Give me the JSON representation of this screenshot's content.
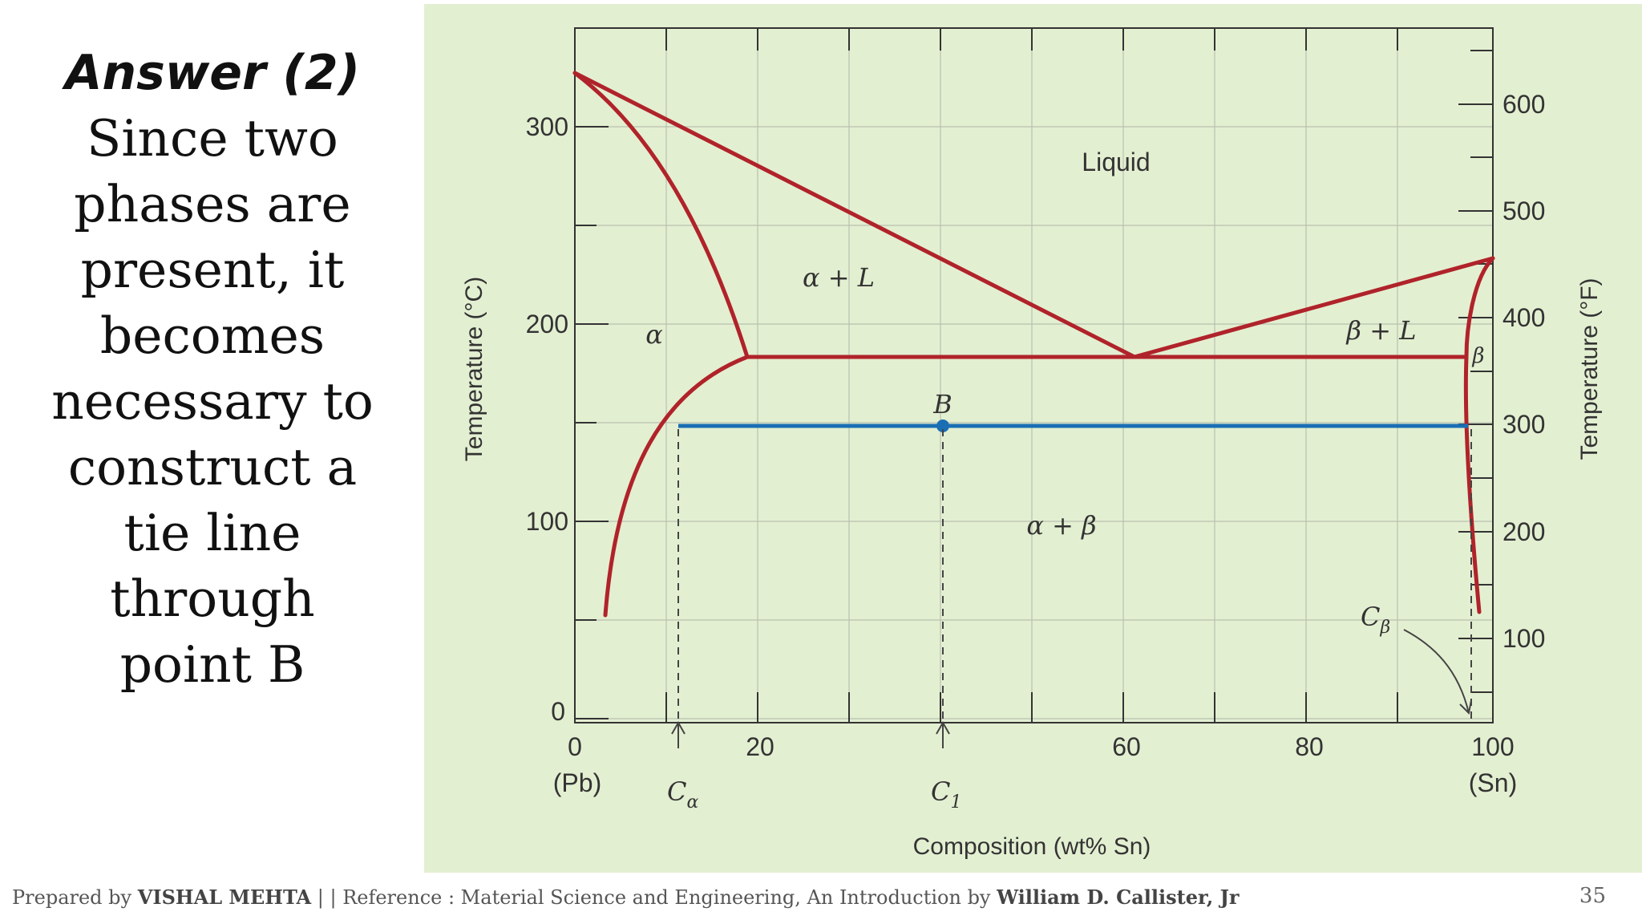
{
  "answer": {
    "title": "Answer (2)",
    "lines": [
      "Since two",
      "phases are",
      "present, it",
      "becomes",
      "necessary to",
      "construct a",
      "tie line",
      "through",
      "point B"
    ]
  },
  "footer": {
    "prefix": "Prepared by ",
    "author": "VISHAL MEHTA",
    "middle": " | | Reference : Material Science and Engineering, An Introduction by ",
    "book_author": "William D. Callister, Jr",
    "page_number": "35"
  },
  "diagram": {
    "x_axis_title": "Composition (wt% Sn)",
    "left_axis_title": "Temperature (°C)",
    "right_axis_title": "Temperature (°F)",
    "x_ticks": [
      "0",
      "20",
      "60",
      "80",
      "100"
    ],
    "x_end_labels": [
      "(Pb)",
      "(Sn)"
    ],
    "left_ticks": [
      "0",
      "100",
      "200",
      "300"
    ],
    "right_ticks": [
      "100",
      "200",
      "300",
      "400",
      "500",
      "600"
    ],
    "regions": {
      "liquid": "Liquid",
      "alpha_liquid": "α + L",
      "alpha": "α",
      "beta_liquid": "β + L",
      "beta": "β",
      "alpha_beta": "α + β"
    },
    "point_label": "B",
    "composition_labels": {
      "c_alpha": "C",
      "c_alpha_sub": "α",
      "c_1": "C",
      "c_1_sub": "1",
      "c_beta": "C",
      "c_beta_sub": "β"
    },
    "colors": {
      "phase_boundary": "#b0232a",
      "tie_line": "#1a6fb4",
      "panel_background": "#e3efd1"
    },
    "data": {
      "pure_pb_melting_c": 327,
      "eutectic_temperature_c": 183,
      "eutectic_composition_wt_sn": 61.9,
      "alpha_max_solubility_wt_sn": 18.3,
      "beta_max_solubility_wt_sn": 97.8,
      "pure_sn_melting_c": 232,
      "tie_line_temperature_c": 150,
      "c_alpha_wt_sn": 11,
      "c_1_wt_sn": 40,
      "c_beta_wt_sn": 98
    }
  }
}
